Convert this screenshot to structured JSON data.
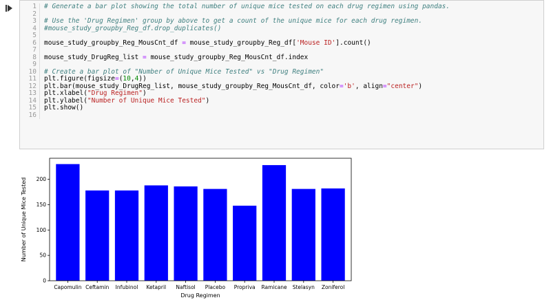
{
  "code_lines": [
    {
      "n": "1",
      "parts": [
        {
          "t": "# Generate a bar plot showing the total number of unique mice tested on each drug regimen using pandas.",
          "c": "c-com"
        }
      ]
    },
    {
      "n": "2",
      "parts": []
    },
    {
      "n": "3",
      "parts": [
        {
          "t": "# Use the 'Drug Regimen' group by above to get a count of the unique mice for each drug regimen.",
          "c": "c-com"
        }
      ]
    },
    {
      "n": "4",
      "parts": [
        {
          "t": "#mouse_study_groupby_Reg_df.drop_duplicates()",
          "c": "c-com"
        }
      ]
    },
    {
      "n": "5",
      "parts": []
    },
    {
      "n": "6",
      "parts": [
        {
          "t": "mouse_study_groupby_Reg_MousCnt_df ",
          "c": "c-txt"
        },
        {
          "t": "=",
          "c": "c-op"
        },
        {
          "t": " mouse_study_groupby_Reg_df[",
          "c": "c-txt"
        },
        {
          "t": "'Mouse ID'",
          "c": "c-str"
        },
        {
          "t": "].count()",
          "c": "c-txt"
        }
      ]
    },
    {
      "n": "7",
      "parts": []
    },
    {
      "n": "8",
      "parts": [
        {
          "t": "mouse_study_DrugReg_list ",
          "c": "c-txt"
        },
        {
          "t": "=",
          "c": "c-op"
        },
        {
          "t": " mouse_study_groupby_Reg_MousCnt_df.index",
          "c": "c-txt"
        }
      ]
    },
    {
      "n": "9",
      "parts": []
    },
    {
      "n": "10",
      "parts": [
        {
          "t": "# Create a bar plot of \"Number of Unique Mice Tested\" vs \"Drug Regimen\"",
          "c": "c-com"
        }
      ]
    },
    {
      "n": "11",
      "parts": [
        {
          "t": "plt.figure(figsize",
          "c": "c-txt"
        },
        {
          "t": "=",
          "c": "c-op"
        },
        {
          "t": "(",
          "c": "c-txt"
        },
        {
          "t": "10",
          "c": "c-num"
        },
        {
          "t": ",",
          "c": "c-txt"
        },
        {
          "t": "4",
          "c": "c-num"
        },
        {
          "t": "))",
          "c": "c-txt"
        }
      ]
    },
    {
      "n": "12",
      "parts": [
        {
          "t": "plt.bar(mouse_study_DrugReg_list, mouse_study_groupby_Reg_MousCnt_df, color",
          "c": "c-txt"
        },
        {
          "t": "=",
          "c": "c-op"
        },
        {
          "t": "'b'",
          "c": "c-str"
        },
        {
          "t": ", align",
          "c": "c-txt"
        },
        {
          "t": "=",
          "c": "c-op"
        },
        {
          "t": "\"center\"",
          "c": "c-str"
        },
        {
          "t": ")",
          "c": "c-txt"
        }
      ]
    },
    {
      "n": "13",
      "parts": [
        {
          "t": "plt.xlabel(",
          "c": "c-txt"
        },
        {
          "t": "\"Drug Regimen\"",
          "c": "c-str"
        },
        {
          "t": ")",
          "c": "c-txt"
        }
      ]
    },
    {
      "n": "14",
      "parts": [
        {
          "t": "plt.ylabel(",
          "c": "c-txt"
        },
        {
          "t": "\"Number of Unique Mice Tested\"",
          "c": "c-str"
        },
        {
          "t": ")",
          "c": "c-txt"
        }
      ]
    },
    {
      "n": "15",
      "parts": [
        {
          "t": "plt.show()",
          "c": "c-txt"
        }
      ]
    },
    {
      "n": "16",
      "parts": []
    }
  ],
  "colors": {
    "bar": "#0000ff",
    "comment": "#408080",
    "string": "#ba2121",
    "number": "#008800",
    "operator": "#aa22ff"
  },
  "chart_data": {
    "type": "bar",
    "categories": [
      "Capomulin",
      "Ceftamin",
      "Infubinol",
      "Ketapril",
      "Naftisol",
      "Placebo",
      "Propriva",
      "Ramicane",
      "Stelasyn",
      "Zoniferol"
    ],
    "values": [
      230,
      178,
      178,
      188,
      186,
      181,
      148,
      228,
      181,
      182
    ],
    "xlabel": "Drug Regimen",
    "ylabel": "Number of Unique Mice Tested",
    "yticks": [
      0,
      50,
      100,
      150,
      200
    ],
    "ylim": [
      0,
      241.5
    ],
    "title": ""
  }
}
